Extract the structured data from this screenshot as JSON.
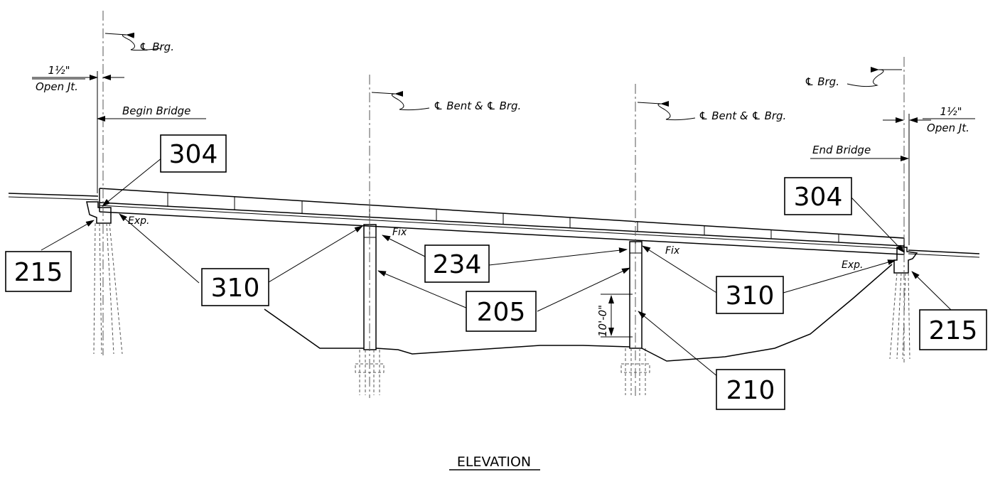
{
  "title": "ELEVATION",
  "callouts": {
    "c304_left": "304",
    "c304_right": "304",
    "c215_left": "215",
    "c215_right": "215",
    "c310_left": "310",
    "c310_right": "310",
    "c234": "234",
    "c205": "205",
    "c210": "210"
  },
  "notes": {
    "cl_brg_left": "℄ Brg.",
    "cl_brg_right": "℄ Brg.",
    "cl_bent_1": "℄ Bent & ℄ Brg.",
    "cl_bent_2": "℄ Bent & ℄ Brg.",
    "open_jt_left_dim": "1½\"",
    "open_jt_left_label": "Open Jt.",
    "open_jt_right_dim": "1½\"",
    "open_jt_right_label": "Open Jt.",
    "begin_bridge": "Begin Bridge",
    "end_bridge": "End Bridge",
    "exp_left": "Exp.",
    "exp_right": "Exp.",
    "fix_1": "Fix",
    "fix_2": "Fix",
    "dim_10ft": "10'-0\""
  }
}
